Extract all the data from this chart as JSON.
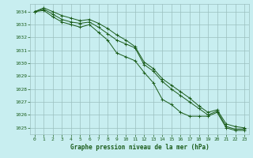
{
  "title": "Graphe pression niveau de la mer (hPa)",
  "bg_color": "#c8eef0",
  "grid_color": "#9bbfbf",
  "line_color": "#1a5c1a",
  "marker_color": "#1a5c1a",
  "xlim": [
    -0.5,
    23.5
  ],
  "ylim": [
    1024.5,
    1034.6
  ],
  "yticks": [
    1025,
    1026,
    1027,
    1028,
    1029,
    1030,
    1031,
    1032,
    1033,
    1034
  ],
  "xticks": [
    0,
    1,
    2,
    3,
    4,
    5,
    6,
    7,
    8,
    9,
    10,
    11,
    12,
    13,
    14,
    15,
    16,
    17,
    18,
    19,
    20,
    21,
    22,
    23
  ],
  "series": [
    [
      1034.0,
      1034.1,
      1033.6,
      1033.2,
      1033.0,
      1032.8,
      1033.0,
      1032.4,
      1031.8,
      1030.8,
      1030.5,
      1030.2,
      1029.3,
      1028.5,
      1027.2,
      1026.8,
      1026.2,
      1025.9,
      1025.9,
      1025.9,
      1026.2,
      1025.0,
      1024.8,
      1024.8
    ],
    [
      1034.0,
      1034.2,
      1033.8,
      1033.4,
      1033.2,
      1033.1,
      1033.2,
      1032.8,
      1032.3,
      1031.8,
      1031.5,
      1031.2,
      1029.9,
      1029.4,
      1028.6,
      1028.0,
      1027.5,
      1027.0,
      1026.5,
      1026.0,
      1026.3,
      1025.1,
      1024.9,
      1024.9
    ],
    [
      1034.0,
      1034.3,
      1034.0,
      1033.7,
      1033.5,
      1033.3,
      1033.4,
      1033.1,
      1032.7,
      1032.2,
      1031.8,
      1031.3,
      1030.1,
      1029.6,
      1028.8,
      1028.3,
      1027.8,
      1027.3,
      1026.7,
      1026.2,
      1026.4,
      1025.3,
      1025.1,
      1025.0
    ]
  ]
}
